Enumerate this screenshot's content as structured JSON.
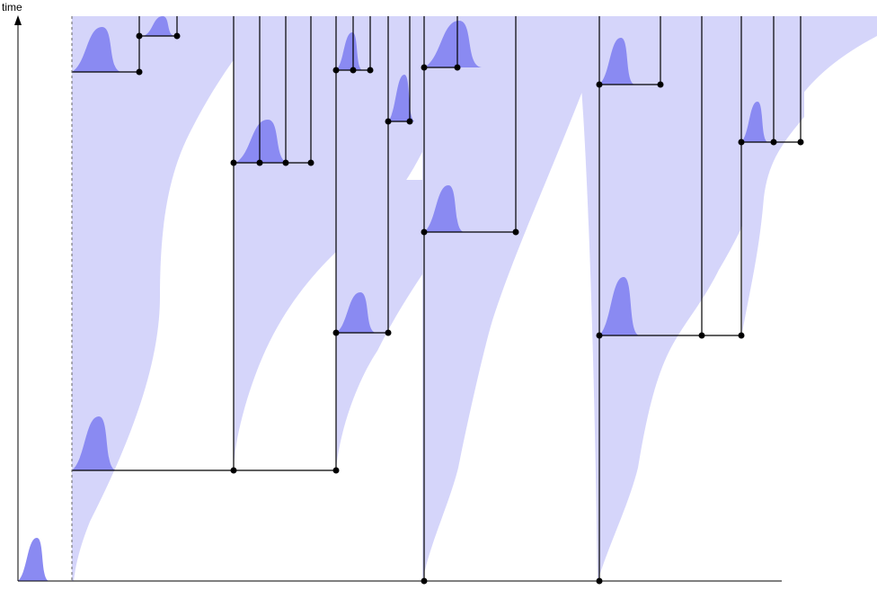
{
  "axis_label": "time"
}
